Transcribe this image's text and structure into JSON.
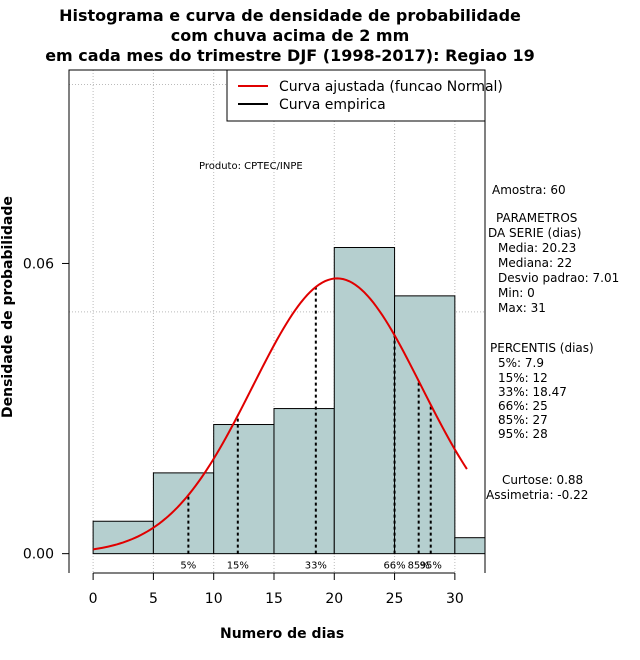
{
  "chart_data": {
    "type": "histogram",
    "title": [
      "Histograma e curva de densidade de probabilidade",
      "com chuva acima de 2 mm",
      "em cada mes do trimestre DJF (1998-2017): Regiao 19"
    ],
    "xlabel": "Numero de dias",
    "ylabel": "Densidade de probabilidade",
    "xlim": [
      -2,
      32.5
    ],
    "ylim": [
      -0.004,
      0.1
    ],
    "x_ticks": [
      0,
      5,
      10,
      15,
      20,
      25,
      30
    ],
    "y_ticks": [
      0.0,
      0.06
    ],
    "y_tick_labels": [
      "0.00",
      "0.06"
    ],
    "grid_y": [
      0.06
    ],
    "bins": [
      0,
      5,
      10,
      15,
      20,
      25,
      30,
      32.5
    ],
    "densities": [
      0.0067,
      0.0167,
      0.0267,
      0.03,
      0.0633,
      0.0533,
      0.0033
    ],
    "fitted_curve": {
      "name": "Curva ajustada (funcao Normal)",
      "mean": 20.23,
      "sd": 7.01,
      "x_range": [
        0,
        31
      ],
      "color": "#e00000"
    },
    "empirical_curve": {
      "name": "Curva empirica",
      "color": "#000000"
    },
    "percentiles": [
      {
        "label": "5%",
        "x": 7.9
      },
      {
        "label": "15%",
        "x": 12
      },
      {
        "label": "33%",
        "x": 18.47
      },
      {
        "label": "66%",
        "x": 25
      },
      {
        "label": "85%",
        "x": 27
      },
      {
        "label": "95%",
        "x": 28
      }
    ],
    "annotation": "Produto: CPTEC/INPE",
    "bar_fill": "#b5cfcf",
    "legend_position": "top-right"
  },
  "stats": {
    "amostra": "Amostra: 60",
    "params_header_1": "PARAMETROS",
    "params_header_2": "DA SERIE (dias)",
    "params": [
      "Media: 20.23",
      "Mediana: 22",
      "Desvio padrao: 7.01",
      "Min: 0",
      "Max: 31"
    ],
    "percentis_header": "PERCENTIS (dias)",
    "percentis": [
      "5%: 7.9",
      "15%: 12",
      "33%: 18.47",
      "66%: 25",
      "85%: 27",
      "95%: 28"
    ],
    "curtose": "Curtose: 0.88",
    "assimetria": "Assimetria: -0.22"
  }
}
